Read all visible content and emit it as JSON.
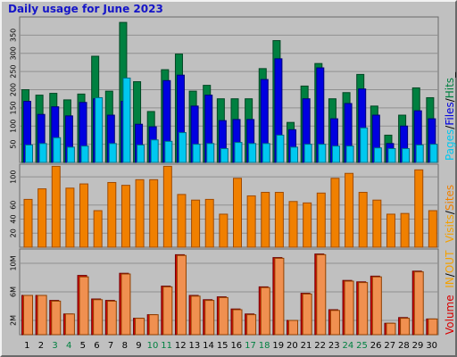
{
  "title": "Daily usage for June 2023",
  "colors": {
    "pages": "#00c8f0",
    "files": "#0000e0",
    "hits": "#008040",
    "visits": "#f4a000",
    "sites": "#f08000",
    "kbytes_in": "#d80000",
    "kbytes_out": "#f09050",
    "weekend_label": "#008040",
    "weekday_label": "#000000"
  },
  "legend": {
    "top": [
      {
        "text": "Pages",
        "color": "#00c8f0"
      },
      {
        "text": "/",
        "color": "#000000"
      },
      {
        "text": "Files",
        "color": "#0000e0"
      },
      {
        "text": "/",
        "color": "#000000"
      },
      {
        "text": "Hits",
        "color": "#008040"
      },
      {
        "text": "_",
        "color": "#000000"
      }
    ],
    "middle": [
      {
        "text": "Visits",
        "color": "#f4a000"
      },
      {
        "text": "/",
        "color": "#000000"
      },
      {
        "text": "Sites",
        "color": "#f08000"
      }
    ],
    "bottom": [
      {
        "text": "Volume",
        "color": "#d80000"
      },
      {
        "text": "  IN",
        "color": "#f4a000"
      },
      {
        "text": "/",
        "color": "#000000"
      },
      {
        "text": "OUT",
        "color": "#f4a000"
      }
    ]
  },
  "chart_data": [
    {
      "type": "bar",
      "panel": "hits-files-pages",
      "categories": [
        "1",
        "2",
        "3",
        "4",
        "5",
        "6",
        "7",
        "8",
        "9",
        "10",
        "11",
        "12",
        "13",
        "14",
        "15",
        "16",
        "17",
        "18",
        "19",
        "20",
        "21",
        "22",
        "23",
        "24",
        "25",
        "26",
        "27",
        "28",
        "29",
        "30"
      ],
      "weekend_days": [
        "3",
        "4",
        "10",
        "11",
        "17",
        "18",
        "24",
        "25"
      ],
      "y_ticks": [
        "50",
        "100",
        "150",
        "200",
        "250",
        "300",
        "350"
      ],
      "ylim": [
        0,
        400
      ],
      "series": [
        {
          "name": "Hits",
          "values": [
            200,
            185,
            190,
            172,
            188,
            292,
            196,
            385,
            222,
            140,
            255,
            298,
            196,
            212,
            175,
            175,
            175,
            258,
            335,
            110,
            210,
            272,
            175,
            192,
            242,
            155,
            75,
            130,
            205,
            178
          ]
        },
        {
          "name": "Files",
          "values": [
            168,
            132,
            153,
            128,
            165,
            175,
            130,
            168,
            105,
            98,
            225,
            240,
            155,
            185,
            115,
            118,
            118,
            228,
            285,
            90,
            175,
            260,
            120,
            162,
            202,
            130,
            52,
            100,
            142,
            120
          ]
        },
        {
          "name": "Pages",
          "values": [
            48,
            52,
            68,
            42,
            45,
            178,
            52,
            232,
            48,
            62,
            58,
            82,
            50,
            52,
            38,
            55,
            52,
            52,
            75,
            42,
            50,
            50,
            45,
            45,
            95,
            40,
            38,
            38,
            48,
            50
          ]
        }
      ]
    },
    {
      "type": "bar",
      "panel": "visits-sites",
      "categories": [
        "1",
        "2",
        "3",
        "4",
        "5",
        "6",
        "7",
        "8",
        "9",
        "10",
        "11",
        "12",
        "13",
        "14",
        "15",
        "16",
        "17",
        "18",
        "19",
        "20",
        "21",
        "22",
        "23",
        "24",
        "25",
        "26",
        "27",
        "28",
        "29",
        "30"
      ],
      "y_ticks": [
        "20",
        "40",
        "60",
        "100"
      ],
      "ylim": [
        0,
        118
      ],
      "series": [
        {
          "name": "Sites",
          "values": [
            68,
            83,
            115,
            84,
            90,
            52,
            92,
            88,
            96,
            96,
            115,
            75,
            67,
            68,
            47,
            98,
            73,
            78,
            78,
            65,
            63,
            77,
            98,
            105,
            78,
            67,
            47,
            48,
            110,
            52
          ]
        }
      ]
    },
    {
      "type": "bar",
      "panel": "volume",
      "categories": [
        "1",
        "2",
        "3",
        "4",
        "5",
        "6",
        "7",
        "8",
        "9",
        "10",
        "11",
        "12",
        "13",
        "14",
        "15",
        "16",
        "17",
        "18",
        "19",
        "20",
        "21",
        "22",
        "23",
        "24",
        "25",
        "26",
        "27",
        "28",
        "29",
        "30"
      ],
      "y_ticks": [
        "2M",
        "6M",
        "10M"
      ],
      "ylim": [
        0,
        12
      ],
      "series": [
        {
          "name": "IN",
          "values": [
            5.5,
            5.5,
            4.8,
            2.9,
            8.3,
            5.0,
            4.8,
            8.6,
            2.3,
            2.8,
            6.8,
            11.2,
            5.5,
            4.9,
            5.3,
            3.6,
            2.9,
            6.7,
            10.8,
            2.0,
            5.8,
            11.3,
            3.5,
            7.6,
            7.4,
            8.2,
            1.6,
            2.4,
            8.9,
            2.2
          ]
        },
        {
          "name": "OUT",
          "values": [
            5.5,
            5.5,
            4.7,
            2.9,
            8.1,
            4.9,
            4.7,
            8.5,
            2.3,
            2.8,
            6.7,
            11.1,
            5.4,
            4.8,
            5.2,
            3.5,
            2.8,
            6.6,
            10.7,
            2.0,
            5.7,
            11.2,
            3.4,
            7.5,
            7.3,
            8.1,
            1.6,
            2.3,
            8.8,
            2.2
          ]
        }
      ]
    }
  ]
}
